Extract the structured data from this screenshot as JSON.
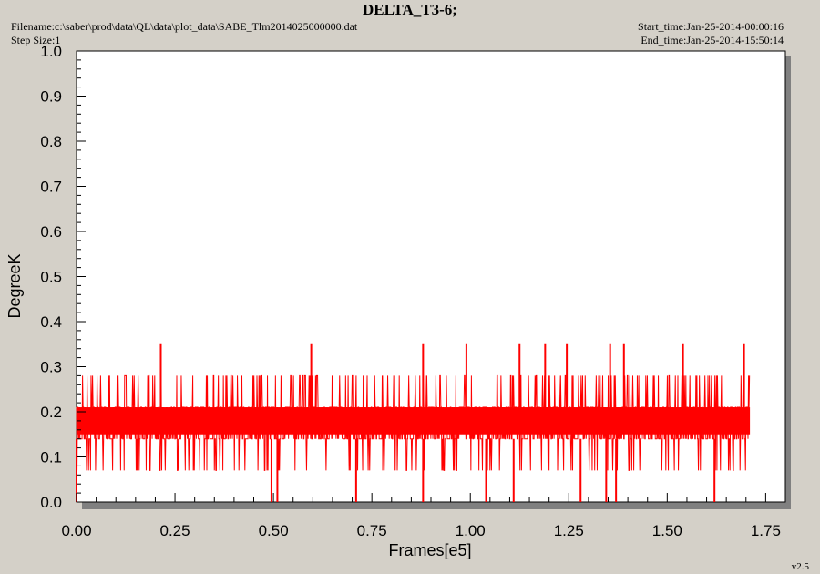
{
  "header": {
    "title": "DELTA_T3-6;",
    "filename": "Filename:c:\\saber\\prod\\data\\QL\\data\\plot_data\\SABE_Tlm2014025000000.dat",
    "step_size": "Step Size:1",
    "start_time": "Start_time:Jan-25-2014-00:00:16",
    "end_time": "End_time:Jan-25-2014-15:50:14",
    "version": "v2.5"
  },
  "colors": {
    "series": "#ff0000",
    "plot_bg": "#ffffff",
    "page_bg": "#d4d0c8",
    "shadow": "#808080"
  },
  "chart_data": {
    "type": "line",
    "title": "DELTA_T3-6;",
    "xlabel": "Frames[e5]",
    "ylabel": "DegreeK",
    "xlim": [
      0,
      1.8
    ],
    "ylim": [
      0,
      1.0
    ],
    "xticks": [
      "0.00",
      "0.25",
      "0.50",
      "0.75",
      "1.00",
      "1.25",
      "1.50",
      "1.75"
    ],
    "yticks": [
      "0.0",
      "0.1",
      "0.2",
      "0.3",
      "0.4",
      "0.5",
      "0.6",
      "0.7",
      "0.8",
      "0.9",
      "1.0"
    ],
    "grid": false,
    "series": [
      {
        "color": "#ff0000",
        "x_range": [
          0,
          1.71
        ],
        "typical_band": [
          0.15,
          0.21
        ],
        "discrete_levels": [
          0.0,
          0.07,
          0.14,
          0.21,
          0.28,
          0.35
        ],
        "spikes_high": [
          {
            "x": 0.214,
            "y": 0.35
          },
          {
            "x": 0.596,
            "y": 0.35
          },
          {
            "x": 0.88,
            "y": 0.35
          },
          {
            "x": 0.99,
            "y": 0.35
          },
          {
            "x": 1.125,
            "y": 0.35
          },
          {
            "x": 1.19,
            "y": 0.35
          },
          {
            "x": 1.245,
            "y": 0.35
          },
          {
            "x": 1.355,
            "y": 0.35
          },
          {
            "x": 1.39,
            "y": 0.35
          },
          {
            "x": 1.54,
            "y": 0.35
          },
          {
            "x": 1.695,
            "y": 0.35
          }
        ],
        "spikes_low": [
          {
            "x": 0.0,
            "y": 0.0
          },
          {
            "x": 0.495,
            "y": 0.0
          },
          {
            "x": 0.51,
            "y": 0.0
          },
          {
            "x": 0.71,
            "y": 0.0
          },
          {
            "x": 0.88,
            "y": 0.0
          },
          {
            "x": 1.04,
            "y": 0.0
          },
          {
            "x": 1.11,
            "y": 0.0
          },
          {
            "x": 1.28,
            "y": 0.0
          },
          {
            "x": 1.345,
            "y": 0.0
          },
          {
            "x": 1.37,
            "y": 0.0
          },
          {
            "x": 1.62,
            "y": 0.0
          }
        ]
      }
    ]
  }
}
